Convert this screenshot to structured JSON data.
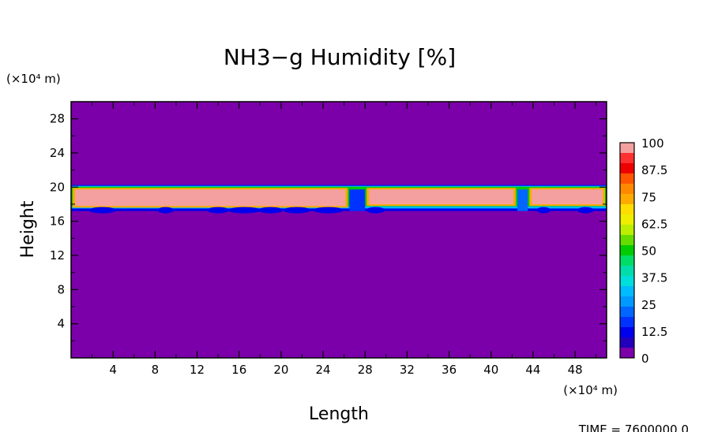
{
  "chart_data": {
    "type": "heatmap",
    "title": "NH3−g Humidity [%]",
    "xlabel": "Length",
    "ylabel": "Height",
    "x_unit": "(×10⁴ m)",
    "y_unit": "(×10⁴ m)",
    "xlim": [
      0,
      51
    ],
    "ylim": [
      0,
      30
    ],
    "x_ticks": [
      4,
      8,
      12,
      16,
      20,
      24,
      28,
      32,
      36,
      40,
      44,
      48
    ],
    "y_ticks": [
      4,
      8,
      12,
      16,
      20,
      24,
      28
    ],
    "x_tick_labels": [
      "4",
      "8",
      "12",
      "16",
      "20",
      "24",
      "28",
      "32",
      "36",
      "40",
      "44",
      "48"
    ],
    "y_tick_labels": [
      "4",
      "8",
      "12",
      "16",
      "20",
      "24",
      "28"
    ],
    "background_value": 0,
    "layer": {
      "base_height": 17.2,
      "top_height": 20.0,
      "segments": [
        {
          "x0": 0.0,
          "x1": 26.5,
          "top": 20.0,
          "bottom": 17.6,
          "value": 100
        },
        {
          "x0": 28.0,
          "x1": 42.5,
          "top": 20.0,
          "bottom": 17.8,
          "value": 100
        },
        {
          "x0": 43.5,
          "x1": 51.0,
          "top": 20.0,
          "bottom": 17.8,
          "value": 100
        }
      ],
      "gaps": [
        {
          "x0": 26.5,
          "x1": 28.0,
          "value": 15
        },
        {
          "x0": 42.5,
          "x1": 43.5,
          "value": 20
        }
      ]
    },
    "colorbar": {
      "labels": [
        "100",
        "87.5",
        "75",
        "62.5",
        "50",
        "37.5",
        "25",
        "12.5",
        "0"
      ],
      "levels": [
        {
          "value": 100,
          "color": "#f4a0a0"
        },
        {
          "value": 95,
          "color": "#ff3030"
        },
        {
          "value": 90,
          "color": "#ee0000"
        },
        {
          "value": 85,
          "color": "#ff5500"
        },
        {
          "value": 80,
          "color": "#ff8800"
        },
        {
          "value": 75,
          "color": "#ffaa00"
        },
        {
          "value": 70,
          "color": "#ffdd00"
        },
        {
          "value": 65,
          "color": "#eeee00"
        },
        {
          "value": 60,
          "color": "#bbee00"
        },
        {
          "value": 55,
          "color": "#66dd00"
        },
        {
          "value": 50,
          "color": "#00cc00"
        },
        {
          "value": 45,
          "color": "#00dd66"
        },
        {
          "value": 40,
          "color": "#00ddaa"
        },
        {
          "value": 35,
          "color": "#00dddd"
        },
        {
          "value": 30,
          "color": "#00bbff"
        },
        {
          "value": 25,
          "color": "#0099ff"
        },
        {
          "value": 20,
          "color": "#0066ff"
        },
        {
          "value": 15,
          "color": "#0033ff"
        },
        {
          "value": 10,
          "color": "#0000ee"
        },
        {
          "value": 5,
          "color": "#2200bb"
        },
        {
          "value": 0,
          "color": "#7b00aa"
        }
      ]
    }
  },
  "footer": {
    "time_label": "TIME = 7600000.0"
  }
}
